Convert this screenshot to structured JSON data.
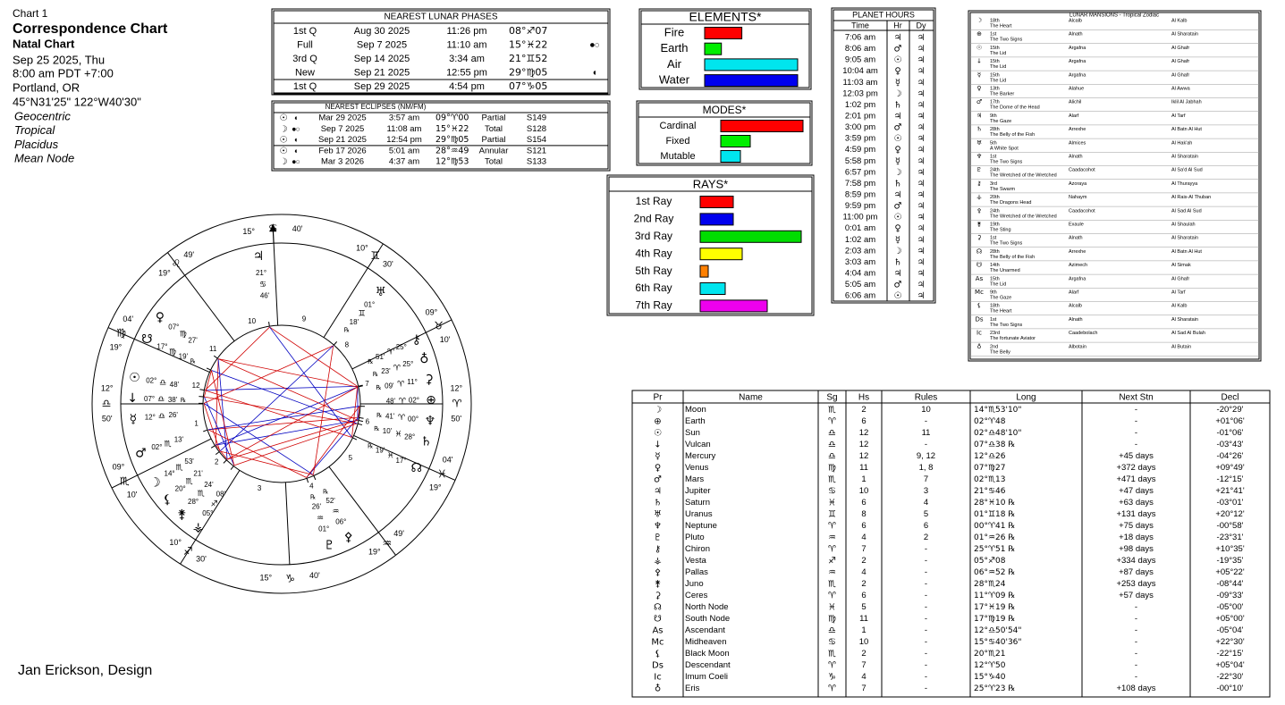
{
  "header": {
    "lines": [
      "Chart 1",
      "Correspondence Chart",
      "Natal Chart",
      "Sep 25 2025, Thu",
      "8:00 am  PDT +7:00",
      "Portland, OR",
      "45°N31'25\" 122°W40'30\""
    ],
    "settings": [
      "Geocentric",
      "Tropical",
      "Placidus",
      "Mean Node"
    ]
  },
  "footer": "Jan Erickson, Design",
  "lunar_phases": {
    "title": "NEAREST LUNAR PHASES",
    "rows": [
      {
        "phase": "1st Q",
        "date": "Aug 30 2025",
        "time": "11:26 pm",
        "pos": "08°♐07",
        "sign": "♐"
      },
      {
        "phase": "Full",
        "date": "Sep 7 2025",
        "time": "11:10 am",
        "pos": "15°♓22",
        "sign": "♓",
        "mark": "●○"
      },
      {
        "phase": "3rd Q",
        "date": "Sep 14 2025",
        "time": "3:34 am",
        "pos": "21°♊52",
        "sign": "♊"
      },
      {
        "phase": "New",
        "date": "Sep 21 2025",
        "time": "12:55 pm",
        "pos": "29°♍05",
        "sign": "♍",
        "mark": "◖"
      },
      {
        "phase": "1st Q",
        "date": "Sep 29 2025",
        "time": "4:54 pm",
        "pos": "07°♑05",
        "sign": "♑"
      }
    ]
  },
  "eclipses": {
    "title": "NEAREST ECLIPSES (NM/FM)",
    "rows": [
      {
        "body": "☉",
        "mark": "◖",
        "date": "Mar 29 2025",
        "time": "3:57 am",
        "pos": "09°♈00",
        "sign": "♈",
        "kind": "Partial",
        "saros": "S149"
      },
      {
        "body": "☽",
        "mark": "●○",
        "date": "Sep 7 2025",
        "time": "11:08 am",
        "pos": "15°♓22",
        "sign": "♓",
        "kind": "Total",
        "saros": "S128"
      },
      {
        "body": "☉",
        "mark": "◖",
        "date": "Sep 21 2025",
        "time": "12:54 pm",
        "pos": "29°♍05",
        "sign": "♍",
        "kind": "Partial",
        "saros": "S154"
      },
      {
        "body": "☉",
        "mark": "◖",
        "date": "Feb 17 2026",
        "time": "5:01 am",
        "pos": "28°♒49",
        "sign": "♒",
        "kind": "Annular",
        "saros": "S121"
      },
      {
        "body": "☽",
        "mark": "●○",
        "date": "Mar 3 2026",
        "time": "4:37 am",
        "pos": "12°♍53",
        "sign": "♍",
        "kind": "Total",
        "saros": "S133"
      }
    ]
  },
  "elements": {
    "title": "ELEMENTS*",
    "bars": [
      {
        "label": "Fire",
        "value": 40,
        "color": "#ff0000"
      },
      {
        "label": "Earth",
        "value": 18,
        "color": "#00ee00"
      },
      {
        "label": "Air",
        "value": 100,
        "color": "#00e5ee"
      },
      {
        "label": "Water",
        "value": 100,
        "color": "#0000ee"
      }
    ]
  },
  "modes": {
    "title": "MODES*",
    "bars": [
      {
        "label": "Cardinal",
        "value": 92,
        "color": "#ff0000"
      },
      {
        "label": "Fixed",
        "value": 33,
        "color": "#00ee00"
      },
      {
        "label": "Mutable",
        "value": 22,
        "color": "#00e5ee"
      }
    ]
  },
  "rays": {
    "title": "RAYS*",
    "bars": [
      {
        "label": "1st Ray",
        "value": 37,
        "color": "#ff0000"
      },
      {
        "label": "2nd Ray",
        "value": 37,
        "color": "#0000ee"
      },
      {
        "label": "3rd Ray",
        "value": 113,
        "color": "#00dd00"
      },
      {
        "label": "4th Ray",
        "value": 47,
        "color": "#ffff00"
      },
      {
        "label": "5th Ray",
        "value": 9,
        "color": "#ff8000"
      },
      {
        "label": "6th Ray",
        "value": 28,
        "color": "#00e5ee"
      },
      {
        "label": "7th Ray",
        "value": 75,
        "color": "#ee00ee"
      }
    ]
  },
  "planet_hours": {
    "title": "PLANET HOURS",
    "columns": [
      "Time",
      "Hr",
      "Dy"
    ],
    "rows": [
      [
        "7:06 am",
        "♃",
        "♃"
      ],
      [
        "8:06 am",
        "♂",
        "♃"
      ],
      [
        "9:05 am",
        "☉",
        "♃"
      ],
      [
        "10:04 am",
        "♀",
        "♃"
      ],
      [
        "11:03 am",
        "☿",
        "♃"
      ],
      [
        "12:03 pm",
        "☽",
        "♃"
      ],
      [
        "1:02 pm",
        "♄",
        "♃"
      ],
      [
        "2:01 pm",
        "♃",
        "♃"
      ],
      [
        "3:00 pm",
        "♂",
        "♃"
      ],
      [
        "3:59 pm",
        "☉",
        "♃"
      ],
      [
        "4:59 pm",
        "♀",
        "♃"
      ],
      [
        "5:58 pm",
        "☿",
        "♃"
      ],
      [
        "6:57 pm",
        "☽",
        "♃"
      ],
      [
        "7:58 pm",
        "♄",
        "♃"
      ],
      [
        "8:59 pm",
        "♃",
        "♃"
      ],
      [
        "9:59 pm",
        "♂",
        "♃"
      ],
      [
        "11:00 pm",
        "☉",
        "♃"
      ],
      [
        "0:01 am",
        "♀",
        "♃"
      ],
      [
        "1:02 am",
        "☿",
        "♃"
      ],
      [
        "2:03 am",
        "☽",
        "♃"
      ],
      [
        "3:03 am",
        "♄",
        "♃"
      ],
      [
        "4:04 am",
        "♃",
        "♃"
      ],
      [
        "5:05 am",
        "♂",
        "♃"
      ],
      [
        "6:06 am",
        "☉",
        "♃"
      ]
    ]
  },
  "lunar_mansions": {
    "title": "LUNAR MANSIONS - Tropical Zodiac",
    "rows": [
      [
        "18th",
        "Alcalb",
        "Al Kalb",
        "The Heart"
      ],
      [
        "1st",
        "Alnath",
        "Al Sharatain",
        "The Two Signs"
      ],
      [
        "15th",
        "Argafna",
        "Al Ghafr",
        "The Lid"
      ],
      [
        "15th",
        "Argafna",
        "Al Ghafr",
        "The Lid"
      ],
      [
        "15th",
        "Argafna",
        "Al Ghafr",
        "The Lid"
      ],
      [
        "13th",
        "Alahue",
        "Al Awwa",
        "The Barker"
      ],
      [
        "17th",
        "Alichil",
        "Iklil Al Jabhah",
        "The Dome of the Head"
      ],
      [
        "9th",
        "Alarf",
        "Al Tarf",
        "The Gaze"
      ],
      [
        "28th",
        "Arrexhe",
        "Al Batn Al Hut",
        "The Belly of the Fish"
      ],
      [
        "5th",
        "Almices",
        "Al Hak'ah",
        "A White Spot"
      ],
      [
        "1st",
        "Alnath",
        "Al Sharatain",
        "The Two Signs"
      ],
      [
        "24th",
        "Caadacohot",
        "Al Sa'd Al Sud",
        "The Wretched of the Wretched"
      ],
      [
        "3rd",
        "Azoraya",
        "Al Thurayya",
        "The Swarm"
      ],
      [
        "20th",
        "Nahaym",
        "Al Rais-Al Thuban",
        "The Dragons Head"
      ],
      [
        "24th",
        "Caadacohot",
        "Al Sad Al Sud",
        "The Wretched of the Wretched"
      ],
      [
        "19th",
        "Exaule",
        "Al Shaulah",
        "The Sting"
      ],
      [
        "1st",
        "Alnath",
        "Al Sharatain",
        "The Two Signs"
      ],
      [
        "28th",
        "Arrexhe",
        "Al Batn Al Hut",
        "The Belly of the Fish"
      ],
      [
        "14th",
        "Azimech",
        "Al Simak",
        "The Unarmed"
      ],
      [
        "15th",
        "Argafna",
        "Al Ghafr",
        "The Lid"
      ],
      [
        "9th",
        "Alarf",
        "Al Tarf",
        "The Gaze"
      ],
      [
        "18th",
        "Alcalb",
        "Al Kalb",
        "The Heart"
      ],
      [
        "1st",
        "Alnath",
        "Al Sharatain",
        "The Two Signs"
      ],
      [
        "23rd",
        "Caadebolach",
        "Al Sad Al Bulah",
        "The fortunate Aviator"
      ],
      [
        "2nd",
        "Albotain",
        "Al Butain",
        "The Belly"
      ]
    ]
  },
  "planets": {
    "columns": [
      "Pr",
      "Name",
      "Sg",
      "Hs",
      "Rules",
      "Long",
      "Next Stn",
      "Decl"
    ],
    "rows": [
      {
        "glyph": "☽",
        "name": "Moon",
        "sign": "♏",
        "house": "2",
        "rules": "10",
        "long": "14°♏53'10\"",
        "next": "-",
        "decl": "-20°29'",
        "color": "#9a9a00"
      },
      {
        "glyph": "⊕",
        "name": "Earth",
        "sign": "♈",
        "house": "6",
        "rules": "-",
        "long": "02°♈48",
        "next": "-",
        "decl": "+01°06'",
        "color": "#008000"
      },
      {
        "glyph": "☉",
        "name": "Sun",
        "sign": "♎",
        "house": "12",
        "rules": "11",
        "long": "02°♎48'10\"",
        "next": "-",
        "decl": "-01°06'",
        "color": "#9a9a00"
      },
      {
        "glyph": "↓",
        "name": "Vulcan",
        "sign": "♎",
        "house": "12",
        "rules": "-",
        "long": "07°♎38 ℞",
        "next": "-",
        "decl": "-03°43'",
        "color": "#c00000"
      },
      {
        "glyph": "☿",
        "name": "Mercury",
        "sign": "♎",
        "house": "12",
        "rules": "9, 12",
        "long": "12°♎26",
        "next": "+45 days",
        "decl": "-04°26'",
        "color": "#800080"
      },
      {
        "glyph": "♀",
        "name": "Venus",
        "sign": "♍",
        "house": "11",
        "rules": "1, 8",
        "long": "07°♍27",
        "next": "+372 days",
        "decl": "+09°49'",
        "color": "#008000"
      },
      {
        "glyph": "♂",
        "name": "Mars",
        "sign": "♏",
        "house": "1",
        "rules": "7",
        "long": "02°♏13",
        "next": "+471 days",
        "decl": "-12°15'",
        "color": "#c00000"
      },
      {
        "glyph": "♃",
        "name": "Jupiter",
        "sign": "♋",
        "house": "10",
        "rules": "3",
        "long": "21°♋46",
        "next": "+47 days",
        "decl": "+21°41'",
        "color": "#808080"
      },
      {
        "glyph": "♄",
        "name": "Saturn",
        "sign": "♓",
        "house": "6",
        "rules": "4",
        "long": "28°♓10 ℞",
        "next": "+63 days",
        "decl": "-03°01'",
        "color": "#800000"
      },
      {
        "glyph": "♅",
        "name": "Uranus",
        "sign": "♊",
        "house": "8",
        "rules": "5",
        "long": "01°♊18 ℞",
        "next": "+131 days",
        "decl": "+20°12'",
        "color": "#008080"
      },
      {
        "glyph": "♆",
        "name": "Neptune",
        "sign": "♈",
        "house": "6",
        "rules": "6",
        "long": "00°♈41 ℞",
        "next": "+75 days",
        "decl": "-00°58'",
        "color": "#008080"
      },
      {
        "glyph": "♇",
        "name": "Pluto",
        "sign": "♒",
        "house": "4",
        "rules": "2",
        "long": "01°♒26 ℞",
        "next": "+18 days",
        "decl": "-23°31'",
        "color": "#800000"
      },
      {
        "glyph": "⚷",
        "name": "Chiron",
        "sign": "♈",
        "house": "7",
        "rules": "-",
        "long": "25°♈51 ℞",
        "next": "+98 days",
        "decl": "+10°35'",
        "color": "#008000"
      },
      {
        "glyph": "⚶",
        "name": "Vesta",
        "sign": "♐",
        "house": "2",
        "rules": "-",
        "long": "05°♐08",
        "next": "+334 days",
        "decl": "-19°35'",
        "color": "#000000"
      },
      {
        "glyph": "⚴",
        "name": "Pallas",
        "sign": "♒",
        "house": "4",
        "rules": "-",
        "long": "06°♒52 ℞",
        "next": "+87 days",
        "decl": "+05°22'",
        "color": "#000000"
      },
      {
        "glyph": "⚵",
        "name": "Juno",
        "sign": "♏",
        "house": "2",
        "rules": "-",
        "long": "28°♏24",
        "next": "+253 days",
        "decl": "-08°44'",
        "color": "#000000"
      },
      {
        "glyph": "⚳",
        "name": "Ceres",
        "sign": "♈",
        "house": "6",
        "rules": "-",
        "long": "11°♈09 ℞",
        "next": "+57 days",
        "decl": "-09°33'",
        "color": "#000000"
      },
      {
        "glyph": "☊",
        "name": "North Node",
        "sign": "♓",
        "house": "5",
        "rules": "-",
        "long": "17°♓19 ℞",
        "next": "-",
        "decl": "-05°00'",
        "color": "#000000"
      },
      {
        "glyph": "☋",
        "name": "South Node",
        "sign": "♍",
        "house": "11",
        "rules": "-",
        "long": "17°♍19 ℞",
        "next": "-",
        "decl": "+05°00'",
        "color": "#000000"
      },
      {
        "glyph": "As",
        "name": "Ascendant",
        "sign": "♎",
        "house": "1",
        "rules": "-",
        "long": "12°♎50'54\"",
        "next": "-",
        "decl": "-05°04'",
        "color": "#000000"
      },
      {
        "glyph": "Mc",
        "name": "Midheaven",
        "sign": "♋",
        "house": "10",
        "rules": "-",
        "long": "15°♋40'36\"",
        "next": "-",
        "decl": "+22°30'",
        "color": "#000000"
      },
      {
        "glyph": "⚸",
        "name": "Black Moon",
        "sign": "♏",
        "house": "2",
        "rules": "-",
        "long": "20°♏21",
        "next": "-",
        "decl": "-22°15'",
        "color": "#000000"
      },
      {
        "glyph": "Ds",
        "name": "Descendant",
        "sign": "♈",
        "house": "7",
        "rules": "-",
        "long": "12°♈50",
        "next": "-",
        "decl": "+05°04'",
        "color": "#000000"
      },
      {
        "glyph": "Ic",
        "name": "Imum Coeli",
        "sign": "♑",
        "house": "4",
        "rules": "-",
        "long": "15°♑40",
        "next": "-",
        "decl": "-22°30'",
        "color": "#000000"
      },
      {
        "glyph": "♁",
        "name": "Eris",
        "sign": "♈",
        "house": "7",
        "rules": "-",
        "long": "25°♈23 ℞",
        "next": "+108 days",
        "decl": "-00°10'",
        "color": "#000000"
      }
    ]
  },
  "wheel": {
    "cusps": [
      {
        "house": 1,
        "deg": "12°",
        "sign": "♎",
        "min": "50'"
      },
      {
        "house": 2,
        "deg": "09°",
        "sign": "♏",
        "min": "10'"
      },
      {
        "house": 3,
        "deg": "10°",
        "sign": "♐",
        "min": "30'"
      },
      {
        "house": 4,
        "deg": "15°",
        "sign": "♑",
        "min": "40'"
      },
      {
        "house": 5,
        "deg": "19°",
        "sign": "♒",
        "min": "49'"
      },
      {
        "house": 6,
        "deg": "19°",
        "sign": "♓",
        "min": "04'"
      },
      {
        "house": 7,
        "deg": "12°",
        "sign": "♈",
        "min": "50'"
      },
      {
        "house": 8,
        "deg": "09°",
        "sign": "♉",
        "min": "10'"
      },
      {
        "house": 9,
        "deg": "10°",
        "sign": "♊",
        "min": "30'"
      },
      {
        "house": 10,
        "deg": "15°",
        "sign": "♋",
        "min": "40'"
      },
      {
        "house": 11,
        "deg": "19°",
        "sign": "♌",
        "min": "49'"
      },
      {
        "house": 12,
        "deg": "19°",
        "sign": "♍",
        "min": "04'"
      }
    ],
    "planets": [
      {
        "glyph": "☽",
        "deg": "14°",
        "sign": "♏",
        "min": "53'",
        "color": "#9a9a00"
      },
      {
        "glyph": "⊕",
        "deg": "02°",
        "sign": "♈",
        "min": "48'",
        "color": "#008000"
      },
      {
        "glyph": "☉",
        "deg": "02°",
        "sign": "♎",
        "min": "48'",
        "color": "#9a9a00"
      },
      {
        "glyph": "↓",
        "deg": "07°",
        "sign": "♎",
        "min": "38'",
        "color": "#c00000",
        "rx": "℞"
      },
      {
        "glyph": "☿",
        "deg": "12°",
        "sign": "♎",
        "min": "26'",
        "color": "#800080"
      },
      {
        "glyph": "♀",
        "deg": "07°",
        "sign": "♍",
        "min": "27'",
        "color": "#008000"
      },
      {
        "glyph": "♂",
        "deg": "02°",
        "sign": "♏",
        "min": "13'",
        "color": "#c00000"
      },
      {
        "glyph": "♃",
        "deg": "21°",
        "sign": "♋",
        "min": "46'",
        "color": "#808080"
      },
      {
        "glyph": "♄",
        "deg": "28°",
        "sign": "♓",
        "min": "10'",
        "color": "#800000",
        "rx": "℞"
      },
      {
        "glyph": "♅",
        "deg": "01°",
        "sign": "♊",
        "min": "18'",
        "color": "#008080",
        "rx": "℞"
      },
      {
        "glyph": "♆",
        "deg": "00°",
        "sign": "♈",
        "min": "41'",
        "color": "#008080",
        "rx": "℞"
      },
      {
        "glyph": "♇",
        "deg": "01°",
        "sign": "♒",
        "min": "26'",
        "color": "#800000",
        "rx": "℞"
      },
      {
        "glyph": "⚷",
        "deg": "25°",
        "sign": "♈",
        "min": "51'",
        "color": "#008000",
        "rx": "℞"
      },
      {
        "glyph": "⚶",
        "deg": "05°",
        "sign": "♐",
        "min": "08'",
        "color": "#800000"
      },
      {
        "glyph": "⚴",
        "deg": "06°",
        "sign": "♒",
        "min": "52'",
        "color": "#000000",
        "rx": "℞"
      },
      {
        "glyph": "⚵",
        "deg": "28°",
        "sign": "♏",
        "min": "24'",
        "color": "#000000"
      },
      {
        "glyph": "⚳",
        "deg": "11°",
        "sign": "♈",
        "min": "09'",
        "color": "#000000",
        "rx": "℞"
      },
      {
        "glyph": "☊",
        "deg": "17°",
        "sign": "♓",
        "min": "19'",
        "color": "#000000",
        "rx": "℞"
      },
      {
        "glyph": "☋",
        "deg": "17°",
        "sign": "♍",
        "min": "19'",
        "color": "#000000",
        "rx": "℞"
      },
      {
        "glyph": "⚸",
        "deg": "20°",
        "sign": "♏",
        "min": "21'",
        "color": "#000000"
      },
      {
        "glyph": "♁",
        "deg": "25°",
        "sign": "♈",
        "min": "23'",
        "color": "#000000",
        "rx": "℞"
      }
    ]
  }
}
